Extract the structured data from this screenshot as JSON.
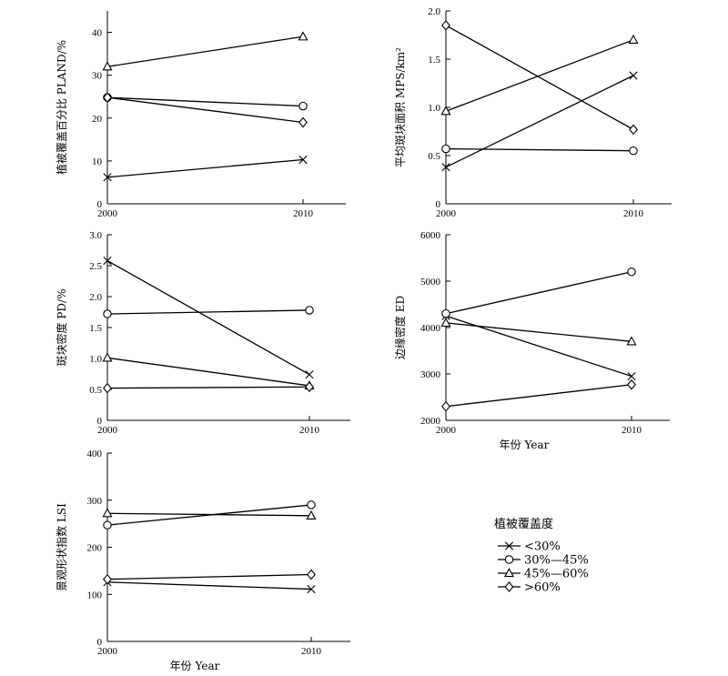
{
  "chart_data": [
    {
      "type": "line",
      "x": [
        2000,
        2010
      ],
      "xticks": [
        "2000",
        "2010"
      ],
      "ylabel": "植被覆盖百分比 PLAND/%",
      "ylim": [
        0,
        45
      ],
      "yticks": [
        "0",
        "10",
        "20",
        "30",
        "40"
      ],
      "xlabel": "",
      "series": [
        {
          "name": "<30%",
          "marker": "x",
          "values": [
            6.2,
            10.3
          ]
        },
        {
          "name": "30%—45%",
          "marker": "o",
          "values": [
            24.8,
            22.8
          ]
        },
        {
          "name": "45%—60%",
          "marker": "^",
          "values": [
            32,
            39
          ]
        },
        {
          "name": ">60%",
          "marker": "d",
          "values": [
            24.8,
            19
          ]
        }
      ]
    },
    {
      "type": "line",
      "x": [
        2000,
        2010
      ],
      "xticks": [
        "2000",
        "2010"
      ],
      "ylabel": "平均斑块面积 MPS/km²",
      "ylim": [
        0,
        2.0
      ],
      "yticks": [
        "0",
        "0.5",
        "1.0",
        "1.5",
        "2.0"
      ],
      "xlabel": "",
      "series": [
        {
          "name": "<30%",
          "marker": "x",
          "values": [
            0.38,
            1.33
          ]
        },
        {
          "name": "30%—45%",
          "marker": "o",
          "values": [
            0.57,
            0.55
          ]
        },
        {
          "name": "45%—60%",
          "marker": "^",
          "values": [
            0.96,
            1.7
          ]
        },
        {
          "name": ">60%",
          "marker": "d",
          "values": [
            1.85,
            0.77
          ]
        }
      ]
    },
    {
      "type": "line",
      "x": [
        2000,
        2010
      ],
      "xticks": [
        "2000",
        "2010"
      ],
      "ylabel": "斑块密度 PD/%",
      "ylim": [
        0,
        3.0
      ],
      "yticks": [
        "0",
        "0.5",
        "1.0",
        "1.5",
        "2.0",
        "2.5",
        "3.0"
      ],
      "xlabel": "",
      "series": [
        {
          "name": "<30%",
          "marker": "x",
          "values": [
            2.58,
            0.74
          ]
        },
        {
          "name": "30%—45%",
          "marker": "o",
          "values": [
            1.72,
            1.78
          ]
        },
        {
          "name": "45%—60%",
          "marker": "^",
          "values": [
            1.01,
            0.56
          ]
        },
        {
          "name": ">60%",
          "marker": "d",
          "values": [
            0.52,
            0.54
          ]
        }
      ]
    },
    {
      "type": "line",
      "x": [
        2000,
        2010
      ],
      "xticks": [
        "2000",
        "2010"
      ],
      "ylabel": "边缘密度 ED",
      "ylim": [
        2000,
        6000
      ],
      "yticks": [
        "2000",
        "3000",
        "4000",
        "5000",
        "6000"
      ],
      "xlabel": "年份 Year",
      "series": [
        {
          "name": "<30%",
          "marker": "x",
          "values": [
            4250,
            2950
          ]
        },
        {
          "name": "30%—45%",
          "marker": "o",
          "values": [
            4300,
            5200
          ]
        },
        {
          "name": "45%—60%",
          "marker": "^",
          "values": [
            4100,
            3700
          ]
        },
        {
          "name": ">60%",
          "marker": "d",
          "values": [
            2300,
            2770
          ]
        }
      ]
    },
    {
      "type": "line",
      "x": [
        2000,
        2010
      ],
      "xticks": [
        "2000",
        "2010"
      ],
      "ylabel": "景观形状指数 LSI",
      "ylim": [
        0,
        400
      ],
      "yticks": [
        "0",
        "100",
        "200",
        "300",
        "400"
      ],
      "xlabel": "年份 Year",
      "series": [
        {
          "name": "<30%",
          "marker": "x",
          "values": [
            126,
            111
          ]
        },
        {
          "name": "30%—45%",
          "marker": "o",
          "values": [
            247,
            290
          ]
        },
        {
          "name": "45%—60%",
          "marker": "^",
          "values": [
            272,
            267
          ]
        },
        {
          "name": ">60%",
          "marker": "d",
          "values": [
            132,
            142
          ]
        }
      ]
    }
  ],
  "legend": {
    "title": "植被覆盖度",
    "items": [
      {
        "label": "<30%",
        "marker": "x"
      },
      {
        "label": "30%—45%",
        "marker": "o"
      },
      {
        "label": "45%—60%",
        "marker": "^"
      },
      {
        "label": ">60%",
        "marker": "d"
      }
    ]
  }
}
